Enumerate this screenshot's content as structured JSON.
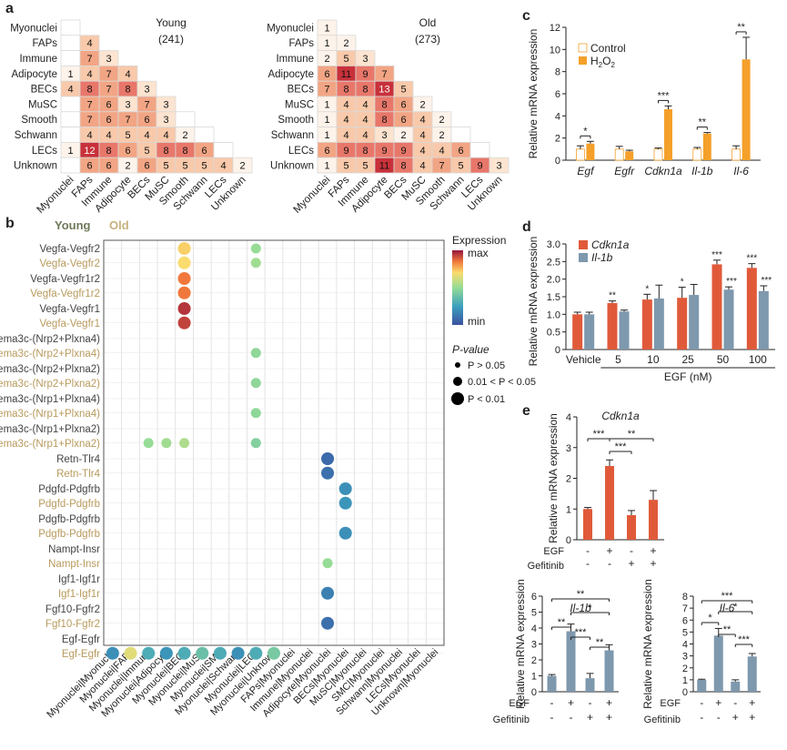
{
  "panel_labels": {
    "a": "a",
    "b": "b",
    "c": "c",
    "d": "d",
    "e": "e"
  },
  "heat_colors": {
    "c0": "#fdf3ea",
    "c1": "#fce4d0",
    "c2": "#f8c9aa",
    "c3": "#f2a584",
    "c4": "#e8776a",
    "c5": "#c8313a"
  },
  "series_colors": {
    "red": "#e05a3a",
    "orange": "#f4a02a",
    "gray": "#7e98ad",
    "black": "#000000"
  },
  "chart_data": [
    {
      "id": "a_young",
      "type": "heatmap",
      "title": "Young",
      "subtitle": "(241)",
      "labels": [
        "Myonuclei",
        "FAPs",
        "Immune",
        "Adipocyte",
        "BECs",
        "MuSC",
        "Smooth",
        "Schwann",
        "LECs",
        "Unknown"
      ],
      "rows": [
        [
          null
        ],
        [
          null,
          4
        ],
        [
          null,
          7,
          3
        ],
        [
          1,
          4,
          7,
          4
        ],
        [
          4,
          8,
          7,
          8,
          3
        ],
        [
          null,
          7,
          6,
          3,
          7,
          3
        ],
        [
          null,
          7,
          6,
          7,
          6,
          3
        ],
        [
          null,
          4,
          4,
          5,
          4,
          4,
          2
        ],
        [
          1,
          12,
          8,
          6,
          5,
          8,
          8,
          6
        ],
        [
          null,
          6,
          6,
          2,
          6,
          5,
          5,
          5,
          4,
          2
        ]
      ]
    },
    {
      "id": "a_old",
      "type": "heatmap",
      "title": "Old",
      "subtitle": "(273)",
      "labels": [
        "Myonuclei",
        "FAPs",
        "Immune",
        "Adipocyte",
        "BECs",
        "MuSC",
        "Smooth",
        "Schwann",
        "LECs",
        "Unknown"
      ],
      "rows": [
        [
          1
        ],
        [
          1,
          2
        ],
        [
          2,
          5,
          3
        ],
        [
          6,
          11,
          9,
          7
        ],
        [
          7,
          8,
          8,
          13,
          5
        ],
        [
          1,
          4,
          4,
          8,
          6,
          2
        ],
        [
          1,
          4,
          4,
          8,
          6,
          4,
          2
        ],
        [
          1,
          4,
          4,
          3,
          2,
          4,
          2
        ],
        [
          6,
          9,
          8,
          9,
          9,
          4,
          4,
          6
        ],
        [
          1,
          5,
          5,
          11,
          8,
          4,
          7,
          5,
          9,
          3
        ]
      ]
    },
    {
      "id": "b_dotplot",
      "type": "scatter",
      "legend_young": "Young",
      "legend_old": "Old",
      "legend_expr_title": "Expression",
      "legend_max": "max",
      "legend_min": "min",
      "legend_p_title": "P-value",
      "legend_p1": "P > 0.05",
      "legend_p2": "0.01 < P < 0.05",
      "legend_p3": "P < 0.01",
      "x_labels": [
        "Myonuclei|Myonuclei",
        "Myonuclei|FAPs",
        "Myonuclei|Immune",
        "Myonuclei|Adipocyte",
        "Myonuclei|BECs",
        "Myonuclei|MuSC",
        "Myonuclei|SMC",
        "Myonuclei|Schwann",
        "Myonuclei|LECs",
        "Myonuclei|Unknown",
        "FAPs|Myonuclei",
        "Immune|Myonuclei",
        "Adipocyte|Myonuclei",
        "BECs|Myonuclei",
        "MuSC|Myonuclei",
        "SMC|Myonuclei",
        "Schwann|Myonuclei",
        "LECs|Myonuclei",
        "Unknown|Myonuclei"
      ],
      "y_labels": [
        {
          "label": "Vegfa-Vegfr2",
          "group": "young"
        },
        {
          "label": "Vegfa-Vegfr2",
          "group": "old"
        },
        {
          "label": "Vegfa-Vegfr1r2",
          "group": "young"
        },
        {
          "label": "Vegfa-Vegfr1r2",
          "group": "old"
        },
        {
          "label": "Vegfa-Vegfr1",
          "group": "young"
        },
        {
          "label": "Vegfa-Vegfr1",
          "group": "old"
        },
        {
          "label": "Sema3c-(Nrp2+Plxna4)",
          "group": "young"
        },
        {
          "label": "Sema3c-(Nrp2+Plxna4)",
          "group": "old"
        },
        {
          "label": "Sema3c-(Nrp2+Plxna2)",
          "group": "young"
        },
        {
          "label": "Sema3c-(Nrp2+Plxna2)",
          "group": "old"
        },
        {
          "label": "Sema3c-(Nrp1+Plxna4)",
          "group": "young"
        },
        {
          "label": "Sema3c-(Nrp1+Plxna4)",
          "group": "old"
        },
        {
          "label": "Sema3c-(Nrp1+Plxna2)",
          "group": "young"
        },
        {
          "label": "Sema3c-(Nrp1+Plxna2)",
          "group": "old"
        },
        {
          "label": "Retn-Tlr4",
          "group": "young"
        },
        {
          "label": "Retn-Tlr4",
          "group": "old"
        },
        {
          "label": "Pdgfd-Pdgfrb",
          "group": "young"
        },
        {
          "label": "Pdgfd-Pdgfrb",
          "group": "old"
        },
        {
          "label": "Pdgfb-Pdgfrb",
          "group": "young"
        },
        {
          "label": "Pdgfb-Pdgfrb",
          "group": "old"
        },
        {
          "label": "Nampt-Insr",
          "group": "young"
        },
        {
          "label": "Nampt-Insr",
          "group": "old"
        },
        {
          "label": "Igf1-Igf1r",
          "group": "young"
        },
        {
          "label": "Igf1-Igf1r",
          "group": "old"
        },
        {
          "label": "Fgf10-Fgfr2",
          "group": "young"
        },
        {
          "label": "Fgf10-Fgfr2",
          "group": "old"
        },
        {
          "label": "Egf-Egfr",
          "group": "young"
        },
        {
          "label": "Egf-Egfr",
          "group": "old"
        }
      ],
      "points": [
        {
          "x": 4,
          "y": 0,
          "expr": 0.72,
          "p": 3
        },
        {
          "x": 8,
          "y": 0,
          "expr": 0.5,
          "p": 2
        },
        {
          "x": 4,
          "y": 1,
          "expr": 0.7,
          "p": 3
        },
        {
          "x": 8,
          "y": 1,
          "expr": 0.52,
          "p": 2
        },
        {
          "x": 4,
          "y": 2,
          "expr": 0.85,
          "p": 3
        },
        {
          "x": 4,
          "y": 3,
          "expr": 0.85,
          "p": 3
        },
        {
          "x": 4,
          "y": 4,
          "expr": 0.95,
          "p": 3
        },
        {
          "x": 4,
          "y": 5,
          "expr": 0.93,
          "p": 3
        },
        {
          "x": 8,
          "y": 7,
          "expr": 0.48,
          "p": 2
        },
        {
          "x": 8,
          "y": 9,
          "expr": 0.48,
          "p": 2
        },
        {
          "x": 8,
          "y": 11,
          "expr": 0.48,
          "p": 2
        },
        {
          "x": 2,
          "y": 13,
          "expr": 0.5,
          "p": 2
        },
        {
          "x": 3,
          "y": 13,
          "expr": 0.52,
          "p": 2
        },
        {
          "x": 4,
          "y": 13,
          "expr": 0.55,
          "p": 2
        },
        {
          "x": 8,
          "y": 13,
          "expr": 0.45,
          "p": 2
        },
        {
          "x": 12,
          "y": 14,
          "expr": 0.08,
          "p": 3
        },
        {
          "x": 12,
          "y": 15,
          "expr": 0.1,
          "p": 3
        },
        {
          "x": 13,
          "y": 16,
          "expr": 0.2,
          "p": 3
        },
        {
          "x": 13,
          "y": 17,
          "expr": 0.22,
          "p": 3
        },
        {
          "x": 13,
          "y": 19,
          "expr": 0.2,
          "p": 3
        },
        {
          "x": 12,
          "y": 21,
          "expr": 0.5,
          "p": 2
        },
        {
          "x": 12,
          "y": 23,
          "expr": 0.15,
          "p": 3
        },
        {
          "x": 12,
          "y": 25,
          "expr": 0.1,
          "p": 3
        },
        {
          "x": 0,
          "y": 27,
          "expr": 0.2,
          "p": 3
        },
        {
          "x": 1,
          "y": 27,
          "expr": 0.65,
          "p": 3
        },
        {
          "x": 2,
          "y": 27,
          "expr": 0.3,
          "p": 3
        },
        {
          "x": 3,
          "y": 27,
          "expr": 0.22,
          "p": 3
        },
        {
          "x": 4,
          "y": 27,
          "expr": 0.3,
          "p": 3
        },
        {
          "x": 5,
          "y": 27,
          "expr": 0.38,
          "p": 3
        },
        {
          "x": 6,
          "y": 27,
          "expr": 0.3,
          "p": 3
        },
        {
          "x": 7,
          "y": 27,
          "expr": 0.2,
          "p": 3
        },
        {
          "x": 8,
          "y": 27,
          "expr": 0.3,
          "p": 3
        },
        {
          "x": 9,
          "y": 27,
          "expr": 0.42,
          "p": 3
        }
      ]
    },
    {
      "id": "c_bar",
      "type": "bar",
      "ylabel": "Relative mRNA expression",
      "ylim": [
        0,
        12
      ],
      "yticks": [
        0,
        2,
        4,
        6,
        8,
        10,
        12
      ],
      "categories": [
        "Egf",
        "Egfr",
        "Cdkn1a",
        "Il-1b",
        "Il-6"
      ],
      "series": [
        {
          "name": "Control",
          "values": [
            1.0,
            1.0,
            1.0,
            1.0,
            1.0
          ],
          "errors": [
            0.3,
            0.25,
            0.1,
            0.15,
            0.3
          ]
        },
        {
          "name": "H2O2",
          "values": [
            1.5,
            0.8,
            4.6,
            2.4,
            9.1
          ],
          "errors": [
            0.2,
            0.1,
            0.3,
            0.1,
            2.0
          ]
        }
      ],
      "legend": [
        "Control",
        "H2O2"
      ],
      "significance": [
        "*",
        "",
        "***",
        "**",
        "**"
      ]
    },
    {
      "id": "d_bar",
      "type": "bar",
      "ylabel": "Relative mRNA expression",
      "xlabel": "EGF (nM)",
      "ylim": [
        0,
        3.0
      ],
      "yticks": [
        0,
        0.5,
        1.0,
        1.5,
        2.0,
        2.5,
        3.0
      ],
      "categories": [
        "Vehicle",
        "5",
        "10",
        "25",
        "50",
        "100"
      ],
      "series": [
        {
          "name": "Cdkn1a",
          "values": [
            1.0,
            1.32,
            1.42,
            1.47,
            2.42,
            2.32
          ],
          "errors": [
            0.06,
            0.06,
            0.15,
            0.3,
            0.12,
            0.12
          ]
        },
        {
          "name": "Il-1b",
          "values": [
            1.0,
            1.08,
            1.45,
            1.55,
            1.7,
            1.66
          ],
          "errors": [
            0.06,
            0.04,
            0.38,
            0.3,
            0.08,
            0.15
          ]
        }
      ],
      "significance_cdkn1a": [
        "",
        "**",
        "*",
        "*",
        "***",
        "***"
      ],
      "significance_il1b": [
        "",
        "",
        "",
        "",
        "***",
        "***"
      ]
    },
    {
      "id": "e_cdkn1a",
      "type": "bar",
      "title": "Cdkn1a",
      "ylabel": "Relative mRNA expression",
      "ylim": [
        0,
        4
      ],
      "yticks": [
        0,
        1,
        2,
        3,
        4
      ],
      "values": [
        1.0,
        2.4,
        0.8,
        1.3
      ],
      "errors": [
        0.05,
        0.2,
        0.15,
        0.3
      ],
      "egf": [
        "-",
        "+",
        "-",
        "+"
      ],
      "gefitinib": [
        "-",
        "-",
        "+",
        "+"
      ],
      "row_labels": [
        "EGF",
        "Gefitinib"
      ],
      "brackets": [
        {
          "from": 0,
          "to": 1,
          "label": "***"
        },
        {
          "from": 1,
          "to": 3,
          "label": "**"
        },
        {
          "from": 1,
          "to": 2,
          "label": "***"
        }
      ]
    },
    {
      "id": "e_il1b",
      "type": "bar",
      "title": "Il-1b",
      "ylabel": "Relative mRNA expression",
      "ylim": [
        0,
        6
      ],
      "yticks": [
        0,
        1,
        2,
        3,
        4,
        5,
        6
      ],
      "values": [
        1.0,
        3.8,
        0.85,
        2.6
      ],
      "errors": [
        0.08,
        0.45,
        0.3,
        0.35
      ],
      "egf": [
        "-",
        "+",
        "-",
        "+"
      ],
      "gefitinib": [
        "-",
        "-",
        "+",
        "+"
      ],
      "row_labels": [
        "EGF",
        "Gefitinib"
      ],
      "brackets": [
        {
          "from": 0,
          "to": 3,
          "label": "**"
        },
        {
          "from": 1,
          "to": 3,
          "label": "*"
        },
        {
          "from": 0,
          "to": 1,
          "label": "**"
        },
        {
          "from": 1,
          "to": 2,
          "label": "***"
        },
        {
          "from": 2,
          "to": 3,
          "label": "**"
        }
      ]
    },
    {
      "id": "e_il6",
      "type": "bar",
      "title": "Il-6",
      "ylabel": "Relative mRNA expression",
      "ylim": [
        0,
        8
      ],
      "yticks": [
        0,
        1,
        2,
        3,
        4,
        5,
        6,
        7,
        8
      ],
      "values": [
        1.0,
        4.7,
        0.85,
        2.95
      ],
      "errors": [
        0.05,
        0.6,
        0.15,
        0.25
      ],
      "egf": [
        "-",
        "+",
        "-",
        "+"
      ],
      "gefitinib": [
        "-",
        "-",
        "+",
        "+"
      ],
      "row_labels": [
        "EGF",
        "Gefitinib"
      ],
      "brackets": [
        {
          "from": 0,
          "to": 3,
          "label": "***"
        },
        {
          "from": 1,
          "to": 3,
          "label": "*"
        },
        {
          "from": 0,
          "to": 1,
          "label": "*"
        },
        {
          "from": 1,
          "to": 2,
          "label": "**"
        },
        {
          "from": 2,
          "to": 3,
          "label": "***"
        }
      ]
    }
  ]
}
